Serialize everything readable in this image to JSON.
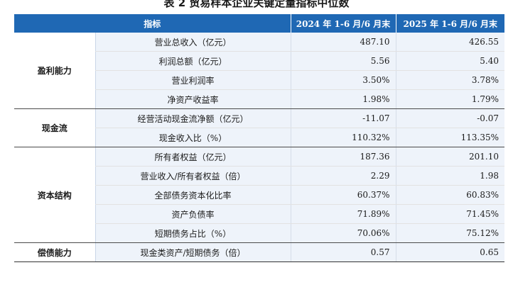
{
  "title": "表 2   贸易样本企业关键定量指标中位数",
  "header": {
    "indicator": "指标",
    "col_2024": "2024 年 1-6 月/6 月末",
    "col_2025": "2025 年 1-6 月/6 月末"
  },
  "groups": [
    {
      "category": "盈利能力",
      "rows": [
        {
          "metric": "营业总收入（亿元）",
          "v2024": "487.10",
          "v2025": "426.55"
        },
        {
          "metric": "利润总额（亿元）",
          "v2024": "5.56",
          "v2025": "5.40"
        },
        {
          "metric": "营业利润率",
          "v2024": "3.50%",
          "v2025": "3.78%"
        },
        {
          "metric": "净资产收益率",
          "v2024": "1.98%",
          "v2025": "1.79%"
        }
      ]
    },
    {
      "category": "现金流",
      "rows": [
        {
          "metric": "经营活动现金流净额（亿元）",
          "v2024": "-11.07",
          "v2025": "-0.07"
        },
        {
          "metric": "现金收入比（%）",
          "v2024": "110.32%",
          "v2025": "113.35%"
        }
      ]
    },
    {
      "category": "资本结构",
      "rows": [
        {
          "metric": "所有者权益（亿元）",
          "v2024": "187.36",
          "v2025": "201.10"
        },
        {
          "metric": "营业收入/所有者权益（倍）",
          "v2024": "2.29",
          "v2025": "1.98"
        },
        {
          "metric": "全部债务资本化比率",
          "v2024": "60.37%",
          "v2025": "60.83%"
        },
        {
          "metric": "资产负债率",
          "v2024": "71.89%",
          "v2025": "71.45%"
        },
        {
          "metric": "短期债务占比（%）",
          "v2024": "70.06%",
          "v2025": "75.12%"
        }
      ]
    },
    {
      "category": "偿债能力",
      "rows": [
        {
          "metric": "现金类资产/短期债务（倍）",
          "v2024": "0.57",
          "v2025": "0.65"
        }
      ]
    }
  ]
}
